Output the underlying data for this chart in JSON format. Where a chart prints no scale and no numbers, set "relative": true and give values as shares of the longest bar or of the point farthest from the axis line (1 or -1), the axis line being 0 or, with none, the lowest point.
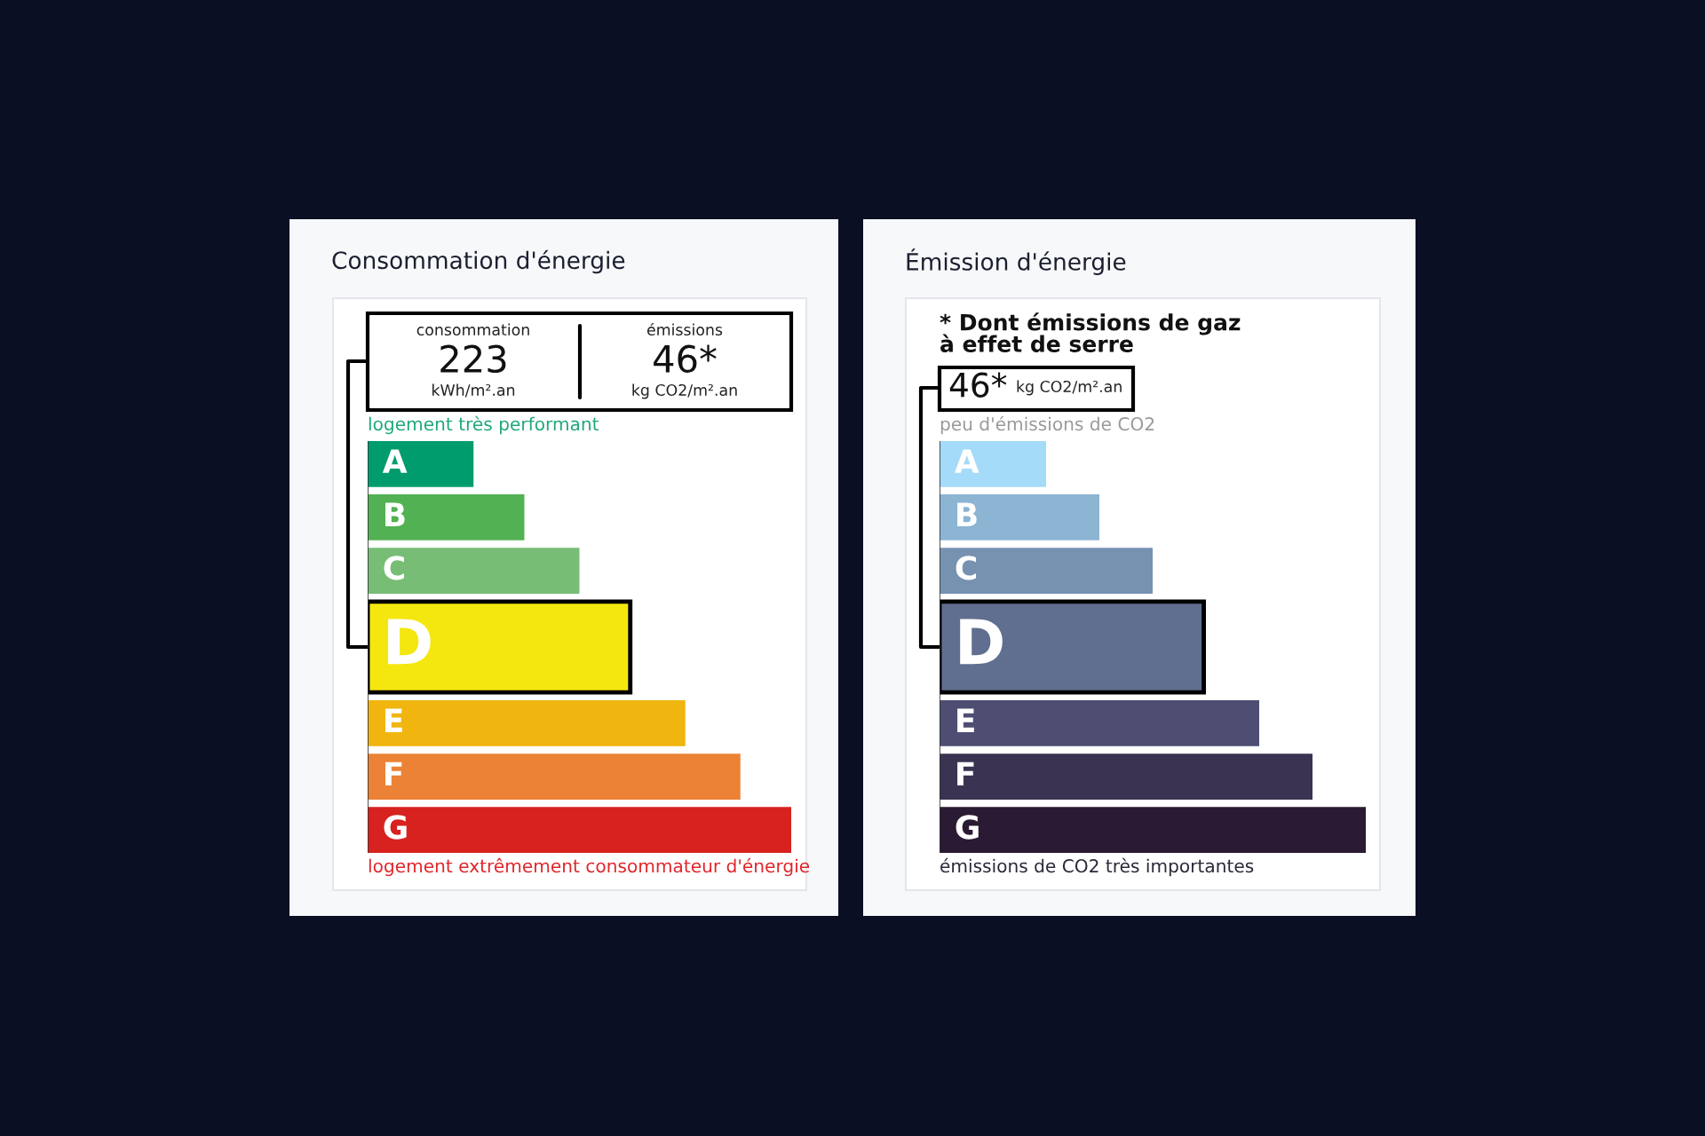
{
  "chart_data": [
    {
      "type": "bar",
      "orientation": "horizontal",
      "relative": true,
      "title": "Consommation d'énergie",
      "categories": [
        "A",
        "B",
        "C",
        "D",
        "E",
        "F",
        "G"
      ],
      "values": [
        0.25,
        0.37,
        0.5,
        0.62,
        0.75,
        0.88,
        1
      ],
      "colors": [
        "#009c6d",
        "#52b153",
        "#78bd76",
        "#f4e70f",
        "#f0b50f",
        "#eb8235",
        "#d7221f"
      ],
      "annotations": [
        "consommation",
        "223",
        "kWh/m².an",
        "émissions",
        "46*",
        "kg CO2/m².an",
        "logement très performant",
        "logement extrêmement consommateur d'énergie"
      ]
    },
    {
      "type": "bar",
      "orientation": "horizontal",
      "relative": true,
      "title": "Émission d'énergie",
      "categories": [
        "A",
        "B",
        "C",
        "D",
        "E",
        "F",
        "G"
      ],
      "values": [
        0.25,
        0.375,
        0.5,
        0.62,
        0.75,
        0.875,
        1
      ],
      "colors": [
        "#a4dbf8",
        "#8cb4d3",
        "#7792b1",
        "#606f8f",
        "#4e4e73",
        "#3a3351",
        "#2b1a33"
      ],
      "annotations": [
        "* Dont émissions de gaz\nà effet de serre",
        "46*",
        "kg CO2/m².an",
        "peu d'émissions de CO2",
        "émissions de CO2 très importantes"
      ]
    }
  ]
}
